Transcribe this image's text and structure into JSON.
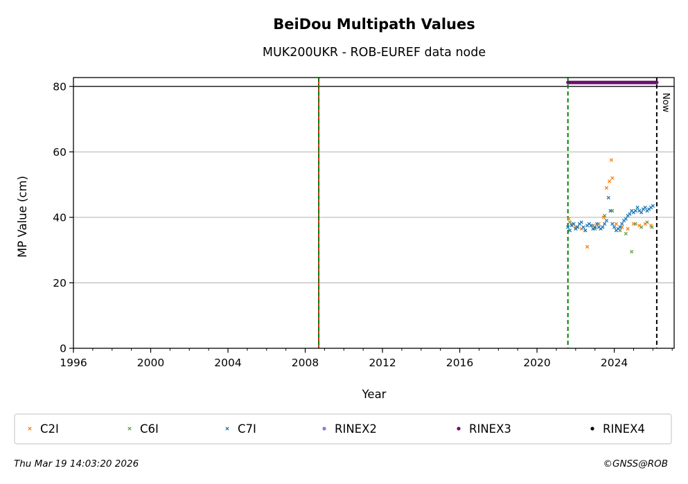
{
  "chart_data": {
    "type": "scatter",
    "title": "BeiDou Multipath Values",
    "subtitle": "MUK200UKR - ROB-EUREF data node",
    "xlabel": "Year",
    "ylabel": "MP Value (cm)",
    "xlim": [
      1996,
      2027.1
    ],
    "ylim": [
      0,
      82.7
    ],
    "x_ticks": [
      1996,
      2000,
      2004,
      2008,
      2012,
      2016,
      2020,
      2024
    ],
    "y_ticks": [
      0,
      20,
      40,
      60,
      80
    ],
    "grid": "horizontal",
    "reference_lines": [
      {
        "x": 2008.7,
        "style": "red-green-dashed"
      },
      {
        "x": 2021.6,
        "style": "green-dashed"
      },
      {
        "x": 2026.2,
        "style": "black-dashed",
        "label": "Now"
      }
    ],
    "horizontal_line": 80,
    "rinex3_availability": {
      "x_start": 2021.6,
      "x_end": 2026.2,
      "y": 81.2
    },
    "series": [
      {
        "name": "C2I",
        "color": "#ff7f0e",
        "marker": "x",
        "x": [
          2021.65,
          2021.8,
          2022.0,
          2022.3,
          2022.6,
          2022.9,
          2023.2,
          2023.45,
          2023.6,
          2023.75,
          2023.85,
          2023.9,
          2024.1,
          2024.4,
          2024.7,
          2025.0,
          2025.3,
          2025.6,
          2025.9
        ],
        "y": [
          39.5,
          38.0,
          37.0,
          36.5,
          31.0,
          37.5,
          38.0,
          40.0,
          49.0,
          51.0,
          57.5,
          52.0,
          38.0,
          37.0,
          36.5,
          38.0,
          37.5,
          38.0,
          37.5
        ]
      },
      {
        "name": "C6I",
        "color": "#6a9a4a",
        "marker": "x",
        "x": [
          2021.7,
          2022.1,
          2022.5,
          2023.0,
          2023.5,
          2023.9,
          2024.3,
          2024.6,
          2024.9,
          2025.1,
          2025.4,
          2025.7,
          2025.95
        ],
        "y": [
          38.5,
          37.0,
          36.0,
          36.5,
          40.5,
          42.0,
          36.0,
          35.0,
          29.5,
          38.0,
          37.0,
          38.5,
          37.0
        ]
      },
      {
        "name": "C7I",
        "color": "#1f77b4",
        "marker": "x",
        "x": [
          2021.6,
          2021.7,
          2021.8,
          2021.9,
          2022.0,
          2022.1,
          2022.2,
          2022.3,
          2022.4,
          2022.5,
          2022.6,
          2022.7,
          2022.8,
          2022.9,
          2023.0,
          2023.1,
          2023.2,
          2023.3,
          2023.4,
          2023.5,
          2023.6,
          2023.7,
          2023.8,
          2023.9,
          2024.0,
          2024.1,
          2024.2,
          2024.3,
          2024.4,
          2024.5,
          2024.6,
          2024.7,
          2024.8,
          2024.9,
          2025.0,
          2025.1,
          2025.2,
          2025.3,
          2025.4,
          2025.5,
          2025.6,
          2025.7,
          2025.8,
          2025.9,
          2026.0
        ],
        "y": [
          37.0,
          36.0,
          37.5,
          38.0,
          36.5,
          37.0,
          38.0,
          38.5,
          37.0,
          36.0,
          37.5,
          38.0,
          37.5,
          36.5,
          37.0,
          38.0,
          37.0,
          36.5,
          37.0,
          38.0,
          39.0,
          46.0,
          42.0,
          38.0,
          37.0,
          36.0,
          36.5,
          37.0,
          38.0,
          39.0,
          39.5,
          40.5,
          41.0,
          42.0,
          41.5,
          42.0,
          43.0,
          42.0,
          41.5,
          42.5,
          43.0,
          42.0,
          42.5,
          43.0,
          43.5
        ]
      }
    ],
    "legend": [
      "C2I",
      "C6I",
      "C7I",
      "RINEX2",
      "RINEX3",
      "RINEX4"
    ],
    "legend_colors": [
      "#ff7f0e",
      "#6a9a4a",
      "#1f77b4",
      "#7b84c6",
      "#6b0f6b",
      "#140014"
    ],
    "legend_position": "bottom"
  },
  "footer": {
    "timestamp": "Thu Mar 19 14:03:20 2026",
    "credit": "©GNSS@ROB"
  }
}
